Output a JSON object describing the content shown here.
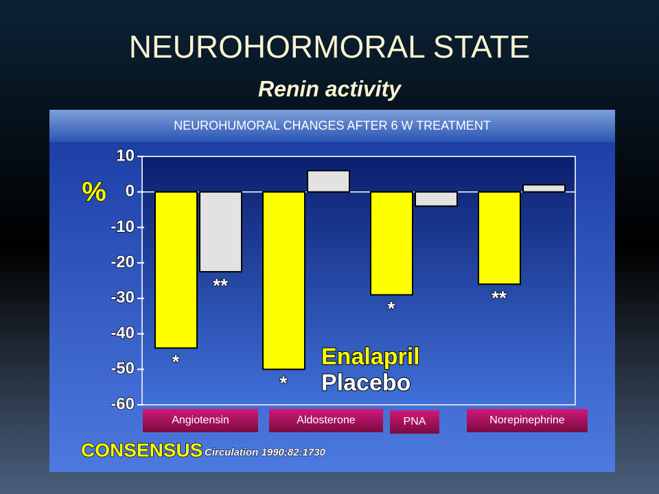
{
  "slide": {
    "title": "NEUROHORMORAL STATE",
    "subtitle": "Renin activity"
  },
  "chart_data": {
    "type": "bar",
    "title": "NEUROHUMORAL CHANGES AFTER 6 W TREATMENT",
    "y_label": "%",
    "categories": [
      "Angiotensin",
      "Aldosterone",
      "PNA",
      "Norepinephrine"
    ],
    "series": [
      {
        "name": "Enalapril",
        "color": "#ffff00",
        "values": [
          -44,
          -50,
          -29,
          -26
        ],
        "markers": [
          "*",
          "*",
          "*",
          "**"
        ]
      },
      {
        "name": "Placebo",
        "color": "#e2e2e2",
        "values": [
          -22.5,
          6,
          -4,
          2
        ],
        "markers": [
          "**",
          null,
          null,
          null
        ]
      }
    ],
    "ylim": [
      10,
      -60
    ],
    "yticks": [
      10,
      0,
      -10,
      -20,
      -30,
      -40,
      -50,
      -60
    ],
    "source": {
      "name": "CONSENSUS",
      "citation": "Circulation 1990;82:1730"
    }
  }
}
